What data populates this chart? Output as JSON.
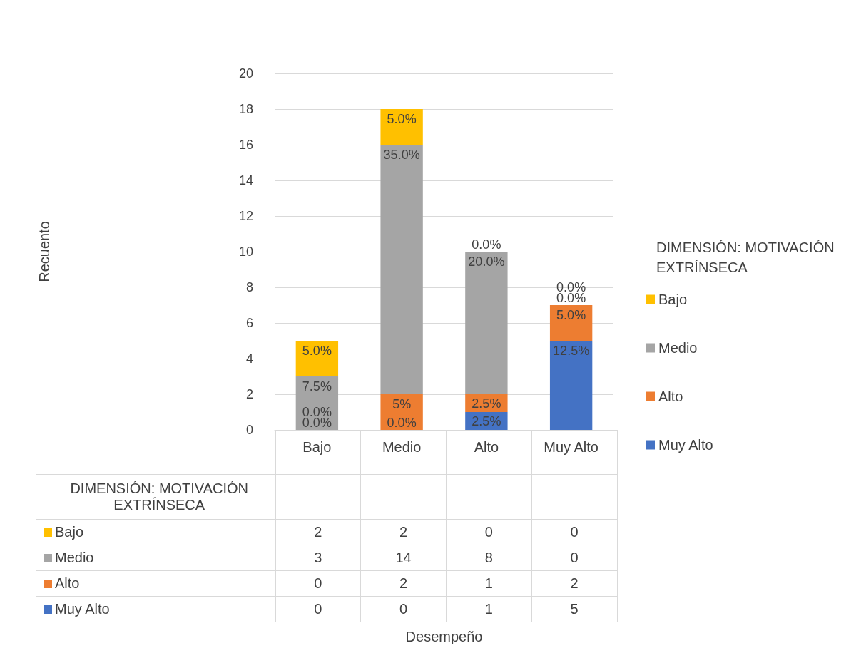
{
  "chart_data": {
    "type": "bar",
    "stacked": true,
    "legend_title": "DIMENSIÓN: MOTIVACIÓN EXTRÍNSECA",
    "categories": [
      "Bajo",
      "Medio",
      "Alto",
      "Muy Alto"
    ],
    "series": [
      {
        "name": "Muy Alto",
        "color": "#4472c4",
        "values": [
          0,
          0,
          1,
          5
        ]
      },
      {
        "name": "Alto",
        "color": "#ed7d31",
        "values": [
          0,
          2,
          1,
          2
        ]
      },
      {
        "name": "Medio",
        "color": "#a5a5a5",
        "values": [
          3,
          14,
          8,
          0
        ]
      },
      {
        "name": "Bajo",
        "color": "#ffc000",
        "values": [
          2,
          2,
          0,
          0
        ]
      }
    ],
    "annotations": [
      "Desempeño",
      "Recuento",
      {
        "text": "0.0%",
        "x": "Bajo",
        "y": 0
      },
      {
        "text": "0.0%",
        "x": "Bajo",
        "y": 0
      },
      {
        "text": "7.5%",
        "x": "Bajo",
        "y": 3
      },
      {
        "text": "5.0%",
        "x": "Bajo",
        "y": 5
      },
      {
        "text": "0.0%",
        "x": "Medio",
        "y": 0
      },
      {
        "text": "5%",
        "x": "Medio",
        "y": 2
      },
      {
        "text": "35.0%",
        "x": "Medio",
        "y": 16
      },
      {
        "text": "5.0%",
        "x": "Medio",
        "y": 18
      },
      {
        "text": "2.5%",
        "x": "Alto",
        "y": 1
      },
      {
        "text": "2.5%",
        "x": "Alto",
        "y": 2
      },
      {
        "text": "20.0%",
        "x": "Alto",
        "y": 10
      },
      {
        "text": "0.0%",
        "x": "Alto",
        "y": 10
      },
      {
        "text": "12.5%",
        "x": "Muy Alto",
        "y": 5
      },
      {
        "text": "5.0%",
        "x": "Muy Alto",
        "y": 7
      },
      {
        "text": "0.0%",
        "x": "Muy Alto",
        "y": 7
      },
      {
        "text": "0.0%",
        "x": "Muy Alto",
        "y": 7
      }
    ],
    "ylim": [
      0,
      20
    ],
    "yticks": [
      0,
      2,
      4,
      6,
      8,
      10,
      12,
      14,
      16,
      18,
      20
    ],
    "grid": "y",
    "legend": "right",
    "data_labels": true
  }
}
